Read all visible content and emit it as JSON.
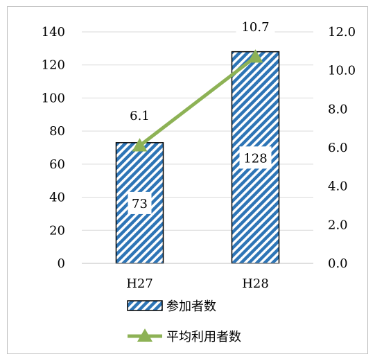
{
  "chart_data": {
    "type": "bar",
    "categories": [
      "H27",
      "H28"
    ],
    "series": [
      {
        "name": "参加者数",
        "type": "bar",
        "axis": "left",
        "values": [
          73,
          128
        ],
        "data_labels": [
          "73",
          "128"
        ],
        "color": "#2e75b6",
        "pattern": "diagonal-stripes"
      },
      {
        "name": "平均利用者数",
        "type": "line",
        "axis": "right",
        "marker": "triangle",
        "values": [
          6.1,
          10.7
        ],
        "data_labels": [
          "6.1",
          "10.7"
        ],
        "color": "#8db255"
      }
    ],
    "y_left": {
      "ylim": [
        0,
        140
      ],
      "ticks": [
        "0",
        "20",
        "40",
        "60",
        "80",
        "100",
        "120",
        "140"
      ]
    },
    "y_right": {
      "ylim": [
        0,
        12
      ],
      "ticks": [
        "0.0",
        "2.0",
        "4.0",
        "6.0",
        "8.0",
        "10.0",
        "12.0"
      ]
    },
    "grid": true,
    "legend": "bottom",
    "title": "",
    "xlabel": "",
    "ylabel": ""
  }
}
